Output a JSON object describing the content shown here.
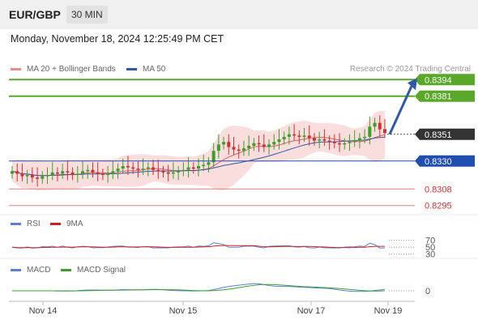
{
  "header": {
    "symbol": "EUR/GBP",
    "timeframe": "30 MIN"
  },
  "datetime": "Monday, November 18, 2024 12:25:49 PM CET",
  "legend": {
    "ma20": {
      "label": "MA 20 + Bollinger Bands",
      "color": "#f08a8a"
    },
    "ma50": {
      "label": "MA 50",
      "color": "#2f5aa8"
    },
    "watermark": "Research © 2024 Trading Central"
  },
  "levels": [
    {
      "value": "0.8394",
      "kind": "resistance"
    },
    {
      "value": "0.8381",
      "kind": "resistance"
    },
    {
      "value": "0.8351",
      "kind": "current"
    },
    {
      "value": "0.8330",
      "kind": "pivot"
    },
    {
      "value": "0.8308",
      "kind": "support"
    },
    {
      "value": "0.8295",
      "kind": "support"
    }
  ],
  "rsi_panel": {
    "label1": "RSI",
    "label2": "9MA",
    "ticks": [
      "70",
      "50",
      "30"
    ]
  },
  "macd_panel": {
    "label1": "MACD",
    "label2": "MACD Signal",
    "ticks": [
      "0"
    ]
  },
  "xaxis": [
    "Nov 14",
    "Nov 15",
    "Nov 17",
    "Nov 19"
  ],
  "colors": {
    "up": "#3aa02a",
    "down": "#d03030",
    "resistance": "#5aa82a",
    "support": "#e08080",
    "pivot": "#1f4fb0",
    "current": "#333333",
    "arrow": "#2f5aa8",
    "band": "#f8d3d3"
  },
  "chart_data": {
    "type": "candlestick",
    "instrument": "EUR/GBP",
    "interval": "30 MIN",
    "ylim": [
      0.8291,
      0.8398
    ],
    "price_close_path": [
      0.8322,
      0.832,
      0.8318,
      0.8319,
      0.8317,
      0.8316,
      0.8318,
      0.8319,
      0.8321,
      0.832,
      0.8322,
      0.8321,
      0.8319,
      0.832,
      0.8322,
      0.8323,
      0.8321,
      0.832,
      0.8319,
      0.832,
      0.8322,
      0.8324,
      0.8326,
      0.8325,
      0.8324,
      0.8323,
      0.8324,
      0.8325,
      0.8323,
      0.8322,
      0.8321,
      0.832,
      0.8321,
      0.8322,
      0.8323,
      0.8325,
      0.8324,
      0.8326,
      0.8327,
      0.8329,
      0.8338,
      0.8343,
      0.8345,
      0.8341,
      0.8339,
      0.8338,
      0.834,
      0.8342,
      0.8344,
      0.8343,
      0.8341,
      0.8343,
      0.8345,
      0.8347,
      0.8349,
      0.8351,
      0.835,
      0.8349,
      0.835,
      0.8348,
      0.8346,
      0.8347,
      0.8346,
      0.8345,
      0.8344,
      0.8343,
      0.8344,
      0.8345,
      0.8346,
      0.8348,
      0.8349,
      0.8357,
      0.836,
      0.8355,
      0.8352
    ],
    "key_levels": {
      "resistance": [
        0.8394,
        0.8381
      ],
      "pivot": 0.833,
      "support": [
        0.8308,
        0.8295
      ],
      "last": 0.8351
    },
    "indicators": [
      "MA 20 + Bollinger Bands",
      "MA 50",
      "RSI",
      "9MA",
      "MACD",
      "MACD Signal"
    ],
    "rsi_levels": [
      70,
      50,
      30
    ],
    "macd_levels": [
      0
    ],
    "x_ticks": [
      "Nov 14",
      "Nov 15",
      "Nov 17",
      "Nov 19"
    ],
    "forecast": "bullish arrow toward 0.8394"
  }
}
